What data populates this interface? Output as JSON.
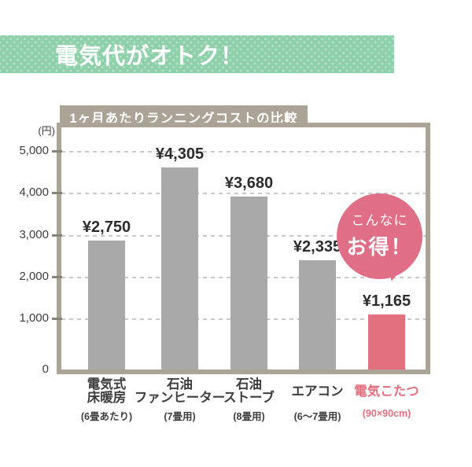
{
  "banner": {
    "label": "電気代がオトク！"
  },
  "chart_data": {
    "type": "bar",
    "title": "1ヶ月あたりランニングコストの比較",
    "ylabel": "(円)",
    "xlabel": "",
    "ylim": [
      0,
      5000
    ],
    "yticks": [
      5000,
      4000,
      3000,
      2000,
      1000,
      0
    ],
    "ytick_labels": [
      "5,000",
      "4,000",
      "3,000",
      "2,000",
      "1,000",
      "0"
    ],
    "grid": "horizontal dashed",
    "legend": "none",
    "categories": [
      {
        "name_lines": [
          "電気式",
          "床暖房"
        ],
        "sub": "(6畳あたり)",
        "value": 2750,
        "value_label": "¥2,750",
        "highlight": false
      },
      {
        "name_lines": [
          "石油",
          "ファンヒーター"
        ],
        "sub": "(7畳用)",
        "value": 4305,
        "value_label": "¥4,305",
        "highlight": false
      },
      {
        "name_lines": [
          "石油",
          "ストーブ"
        ],
        "sub": "(8畳用)",
        "value": 3680,
        "value_label": "¥3,680",
        "highlight": false
      },
      {
        "name_lines": [
          "エアコン"
        ],
        "sub": "(6～7畳用)",
        "value": 2335,
        "value_label": "¥2,335",
        "highlight": false
      },
      {
        "name_lines": [
          "電気こたつ"
        ],
        "sub": "(90×90cm)",
        "value": 1165,
        "value_label": "¥1,165",
        "highlight": true
      }
    ]
  },
  "bubble": {
    "line1": "こんなに",
    "line2": "お得！"
  },
  "colors": {
    "green": "#8ed0aa",
    "green_dot": "#b6dfc6",
    "taupe": "#aba395",
    "grid": "#c9c9c9",
    "bar_gray": "#a9a9a9",
    "pink": "#e2707f",
    "pink_bubble": "#e06e86",
    "text_dark": "#2c2c2c",
    "text_label": "#3d3d3d"
  }
}
